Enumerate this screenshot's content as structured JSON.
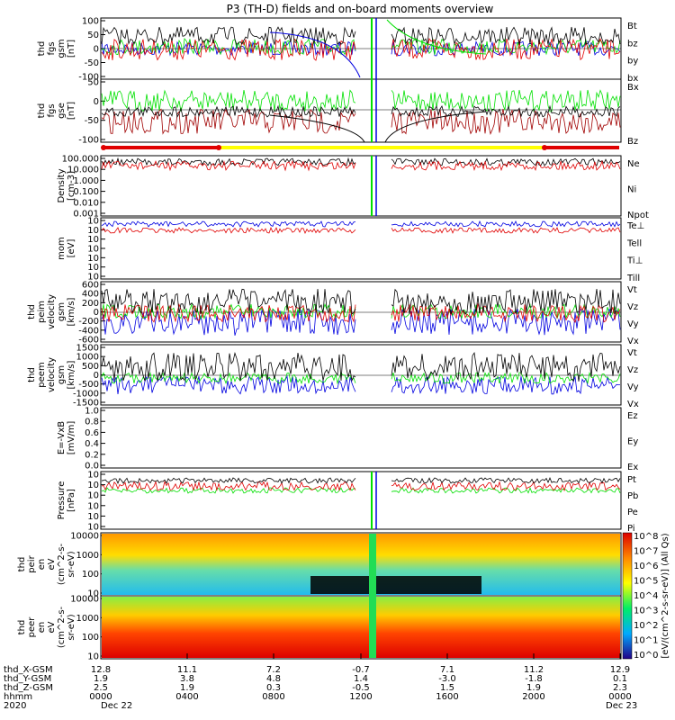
{
  "title": "P3 (TH-D) fields and on-board moments overview",
  "colors": {
    "black": "#000000",
    "red": "#e00000",
    "green": "#00e000",
    "blue": "#0000e0",
    "darkred": "#a00000",
    "yellow": "#ffff00"
  },
  "chart_data": {
    "type": "line",
    "panels": [
      {
        "id": "fgs",
        "ylabel": [
          "thd",
          "fgs",
          "gsm",
          "[nT]"
        ],
        "yticks": [
          "100",
          "50",
          "0",
          "-50",
          "-100"
        ],
        "legend": [
          {
            "text": "Bt",
            "color": "black"
          },
          {
            "text": "bz",
            "color": "red"
          },
          {
            "text": "by",
            "color": "green"
          },
          {
            "text": "bx",
            "color": "blue"
          }
        ]
      },
      {
        "id": "fgs-gse",
        "ylabel": [
          "thd",
          "fgs",
          "gse",
          "[nT]"
        ],
        "yticks": [
          "50",
          "0",
          "-50",
          "-100"
        ],
        "legend": [
          {
            "text": "Bx",
            "color": "darkred"
          },
          {
            "text": "Bz",
            "color": "darkred"
          }
        ]
      },
      {
        "id": "density",
        "ylabel": [
          "Density",
          "[cm-3]"
        ],
        "yticks": [
          "100.000",
          "10.000",
          "1.000",
          "0.100",
          "0.010",
          "0.001"
        ],
        "legend": [
          {
            "text": "Ne",
            "color": "red"
          },
          {
            "text": "Ni",
            "color": "black"
          },
          {
            "text": "Npot",
            "color": "blue"
          }
        ]
      },
      {
        "id": "temp",
        "ylabel": [
          "mom",
          "[eV]"
        ],
        "yticks": [
          "10",
          "10",
          "10",
          "10",
          "10",
          "10",
          "10"
        ],
        "legend": [
          {
            "text": "Te⊥",
            "color": "red"
          },
          {
            "text": "Tell",
            "color": "black"
          },
          {
            "text": "Ti⊥",
            "color": "yellow"
          },
          {
            "text": "Till",
            "color": "green"
          }
        ]
      },
      {
        "id": "peim",
        "ylabel": [
          "thd",
          "peim",
          "velocity",
          "gsm",
          "[km/s]"
        ],
        "yticks": [
          "600",
          "400",
          "200",
          "0",
          "-200",
          "-400",
          "-600"
        ],
        "legend": [
          {
            "text": "Vt",
            "color": "black"
          },
          {
            "text": "Vz",
            "color": "red"
          },
          {
            "text": "Vy",
            "color": "green"
          },
          {
            "text": "Vx",
            "color": "blue"
          }
        ]
      },
      {
        "id": "peem",
        "ylabel": [
          "thd",
          "peem",
          "velocity",
          "gsm",
          "[km/s]"
        ],
        "yticks": [
          "1500",
          "1000",
          "500",
          "0",
          "-500",
          "-1000",
          "-1500"
        ],
        "legend": [
          {
            "text": "Vt",
            "color": "black"
          },
          {
            "text": "Vz",
            "color": "red"
          },
          {
            "text": "Vy",
            "color": "green"
          },
          {
            "text": "Vx",
            "color": "blue"
          }
        ]
      },
      {
        "id": "efield",
        "ylabel": [
          "E=-VxB",
          "[mV/m]"
        ],
        "yticks": [
          "1.0",
          "0.8",
          "0.6",
          "0.4",
          "0.2",
          "0.0"
        ],
        "legend": [
          {
            "text": "Ez",
            "color": "red"
          },
          {
            "text": "Ey",
            "color": "green"
          },
          {
            "text": "Ex",
            "color": "blue"
          }
        ]
      },
      {
        "id": "pressure",
        "ylabel": [
          "Pressure",
          "[nPa]"
        ],
        "yticks": [
          "10",
          "10",
          "10",
          "10",
          "10",
          "10"
        ],
        "legend": [
          {
            "text": "Pt",
            "color": "black"
          },
          {
            "text": "Pb",
            "color": "red"
          },
          {
            "text": "Pe",
            "color": "green"
          },
          {
            "text": "Pi",
            "color": "blue"
          }
        ]
      },
      {
        "id": "peir",
        "ylabel": [
          "thd",
          "peir",
          "en",
          "eV",
          "(cm^2-s-",
          "sr-eV)"
        ],
        "yticks": [
          "10000",
          "1000",
          "100",
          "10"
        ],
        "legend": []
      },
      {
        "id": "peer",
        "ylabel": [
          "thd",
          "peer",
          "en",
          "eV",
          "(cm^2-s-",
          "sr-eV)"
        ],
        "yticks": [
          "10000",
          "1000",
          "100",
          "10"
        ],
        "legend": []
      }
    ],
    "colorbar": {
      "ticks": [
        "10^8",
        "10^7",
        "10^6",
        "10^5",
        "10^4",
        "10^3",
        "10^2",
        "10^1",
        "10^0"
      ],
      "label": "[eV/(cm^2-s-sr-eV)] (All Qs)"
    },
    "time_axis": {
      "rows": [
        {
          "label": "thd_X-GSM",
          "values": [
            "12.8",
            "11.1",
            "7.2",
            "-0.7",
            "7.1",
            "11.2",
            "12.9"
          ]
        },
        {
          "label": "thd_Y-GSM",
          "values": [
            "1.9",
            "3.8",
            "4.8",
            "1.4",
            "-3.0",
            "-1.8",
            "0.1"
          ]
        },
        {
          "label": "thd_Z-GSM",
          "values": [
            "2.5",
            "1.9",
            "0.3",
            "-0.5",
            "1.5",
            "1.9",
            "2.3"
          ]
        },
        {
          "label": "hhmm",
          "values": [
            "0000",
            "0400",
            "0800",
            "1200",
            "1600",
            "2000",
            "0000"
          ]
        }
      ],
      "year": "2020",
      "start_date": "Dec 22",
      "end_date": "Dec 23"
    }
  }
}
